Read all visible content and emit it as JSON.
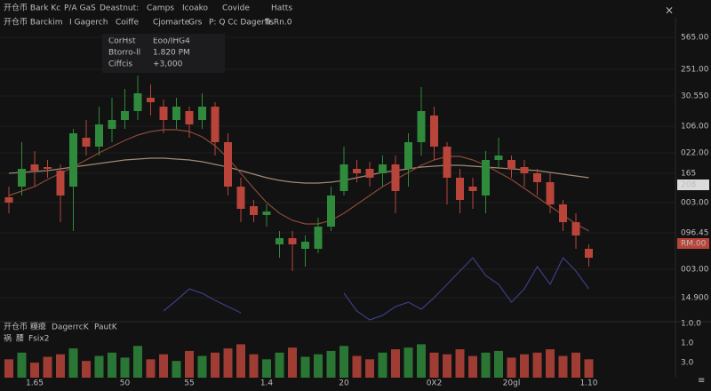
{
  "toolbar": [
    "开仓币 Bark Kc",
    "P/A GaS",
    "Deastnut:",
    "Camps",
    "Icoako",
    "Covide",
    "Hatts"
  ],
  "legend_row": [
    "开仓币 Barckim",
    "I Gagerch",
    "Coiffe",
    "Cjomarte",
    "Grs",
    "P: Q Cc Dagerfis",
    "Tr.Rn.0"
  ],
  "tooltip": [
    [
      "CorHst",
      "Eoo/IHG4"
    ],
    [
      "Btorro-ll",
      "1.820 PM"
    ],
    [
      "Ciffcis",
      "+3,000"
    ]
  ],
  "volume_panel": {
    "title": "开仓币 糢瘪",
    "legend": [
      "DagerrcK",
      "PautK"
    ],
    "row2": [
      "祸",
      "腰",
      "Fsix2"
    ],
    "axis": [
      "1.0.0",
      "1.0",
      "3.0"
    ]
  },
  "chart_data": {
    "type": "candlestick",
    "categories": [
      null,
      null,
      "1.65",
      null,
      null,
      null,
      null,
      null,
      null,
      "50",
      null,
      null,
      null,
      null,
      "55",
      null,
      null,
      null,
      null,
      null,
      "1.4",
      null,
      null,
      null,
      null,
      null,
      "20",
      null,
      null,
      null,
      null,
      null,
      null,
      "0X2",
      null,
      null,
      null,
      null,
      null,
      "20gl",
      null,
      null,
      null,
      null,
      null,
      "1.10"
    ],
    "open": [
      138,
      150,
      175,
      172,
      168,
      150,
      205,
      195,
      215,
      225,
      235,
      250,
      240,
      225,
      235,
      225,
      240,
      200,
      150,
      128,
      118,
      85,
      92,
      80,
      80,
      105,
      145,
      170,
      170,
      165,
      175,
      170,
      200,
      230,
      195,
      160,
      150,
      140,
      180,
      180,
      172,
      165,
      155,
      130,
      110,
      80
    ],
    "high": [
      150,
      200,
      190,
      180,
      175,
      215,
      225,
      240,
      250,
      260,
      275,
      265,
      248,
      250,
      240,
      255,
      245,
      210,
      160,
      135,
      130,
      100,
      100,
      95,
      115,
      150,
      195,
      180,
      178,
      185,
      185,
      210,
      262,
      240,
      200,
      170,
      160,
      190,
      205,
      185,
      180,
      170,
      165,
      135,
      120,
      85
    ],
    "low": [
      120,
      140,
      150,
      160,
      110,
      100,
      185,
      185,
      200,
      215,
      225,
      230,
      210,
      215,
      205,
      215,
      185,
      140,
      110,
      110,
      105,
      70,
      55,
      60,
      75,
      100,
      140,
      155,
      150,
      150,
      120,
      150,
      185,
      180,
      130,
      120,
      125,
      120,
      170,
      160,
      150,
      140,
      120,
      100,
      80,
      60
    ],
    "close": [
      132,
      170,
      168,
      170,
      140,
      210,
      195,
      220,
      225,
      235,
      255,
      245,
      225,
      240,
      220,
      240,
      200,
      150,
      125,
      118,
      122,
      92,
      85,
      88,
      105,
      140,
      175,
      165,
      160,
      175,
      145,
      200,
      235,
      195,
      160,
      135,
      145,
      180,
      185,
      170,
      165,
      155,
      130,
      110,
      95,
      70
    ],
    "up_color": "#2f8a3c",
    "down_color": "#b8443a",
    "ylim": [
      0,
      340
    ],
    "yticks": [
      {
        "value": 318,
        "label": "565.00"
      },
      {
        "value": 282,
        "label": "251.00"
      },
      {
        "value": 252,
        "label": "30.550"
      },
      {
        "value": 218,
        "label": "106.00"
      },
      {
        "value": 188,
        "label": "022.00"
      },
      165,
      {
        "value": 132,
        "label": "003.00"
      },
      {
        "value": 98,
        "label": "096.45"
      },
      {
        "value": 57,
        "label": "003.00"
      },
      {
        "value": 25,
        "label": "14.900"
      }
    ],
    "badges": [
      {
        "value": 152,
        "label": "208",
        "color": "#dcdcdc"
      },
      {
        "value": 86,
        "label": "RM.00",
        "color": "#b8443a"
      }
    ],
    "grid": true,
    "lines": [
      {
        "color": "#a08a74",
        "values": [
          165,
          166,
          167,
          168,
          170,
          172,
          174,
          176,
          178,
          180,
          181,
          182,
          182,
          181,
          180,
          178,
          175,
          172,
          168,
          164,
          160,
          157,
          155,
          154,
          154,
          155,
          157,
          160,
          163,
          166,
          168,
          170,
          172,
          173,
          174,
          174,
          173,
          172,
          171,
          170,
          169,
          168,
          166,
          164,
          162,
          160
        ]
      },
      {
        "color": "#8a4a3a",
        "values": [
          140,
          145,
          150,
          158,
          165,
          172,
          180,
          188,
          195,
          202,
          208,
          212,
          214,
          214,
          212,
          206,
          196,
          182,
          165,
          148,
          132,
          120,
          112,
          108,
          108,
          112,
          120,
          130,
          140,
          150,
          158,
          166,
          174,
          180,
          184,
          184,
          180,
          174,
          166,
          158,
          148,
          138,
          128,
          118,
          108,
          100
        ]
      },
      {
        "color": "#3c3f86",
        "values": [
          null,
          null,
          null,
          null,
          null,
          null,
          null,
          null,
          null,
          null,
          null,
          null,
          10,
          22,
          35,
          30,
          22,
          15,
          8,
          null,
          null,
          null,
          null,
          null,
          null,
          null,
          30,
          10,
          0,
          5,
          15,
          20,
          12,
          25,
          40,
          55,
          70,
          50,
          40,
          20,
          35,
          60,
          40,
          70,
          55,
          35
        ]
      }
    ],
    "volume": [
      22,
      30,
      18,
      25,
      28,
      35,
      20,
      26,
      30,
      24,
      38,
      22,
      28,
      20,
      32,
      26,
      30,
      35,
      40,
      28,
      22,
      30,
      36,
      25,
      28,
      32,
      38,
      26,
      22,
      30,
      34,
      36,
      40,
      30,
      28,
      34,
      26,
      30,
      32,
      24,
      28,
      30,
      34,
      26,
      30,
      22
    ],
    "volume_ylim": [
      0,
      50
    ]
  }
}
